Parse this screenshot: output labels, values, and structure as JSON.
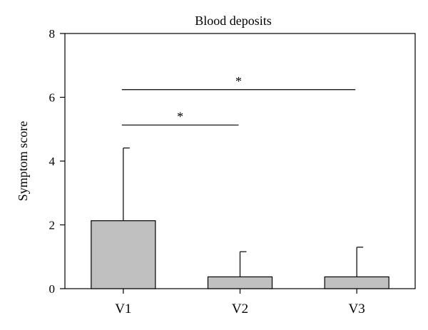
{
  "chart_data": {
    "type": "bar",
    "title": "Blood deposits",
    "xlabel": "",
    "ylabel": "Symptom score",
    "categories": [
      "V1",
      "V2",
      "V3"
    ],
    "values": [
      2.13,
      0.37,
      0.37
    ],
    "error_upper": [
      4.41,
      1.16,
      1.3
    ],
    "ylim": [
      0,
      8
    ],
    "yticks": [
      0,
      2,
      4,
      6,
      8
    ],
    "bar_color": "#c0c0c0",
    "grid": false,
    "significance": [
      {
        "from": "V1",
        "to": "V2",
        "y": 5.13,
        "label": "*"
      },
      {
        "from": "V1",
        "to": "V3",
        "y": 6.24,
        "label": "*"
      }
    ]
  }
}
